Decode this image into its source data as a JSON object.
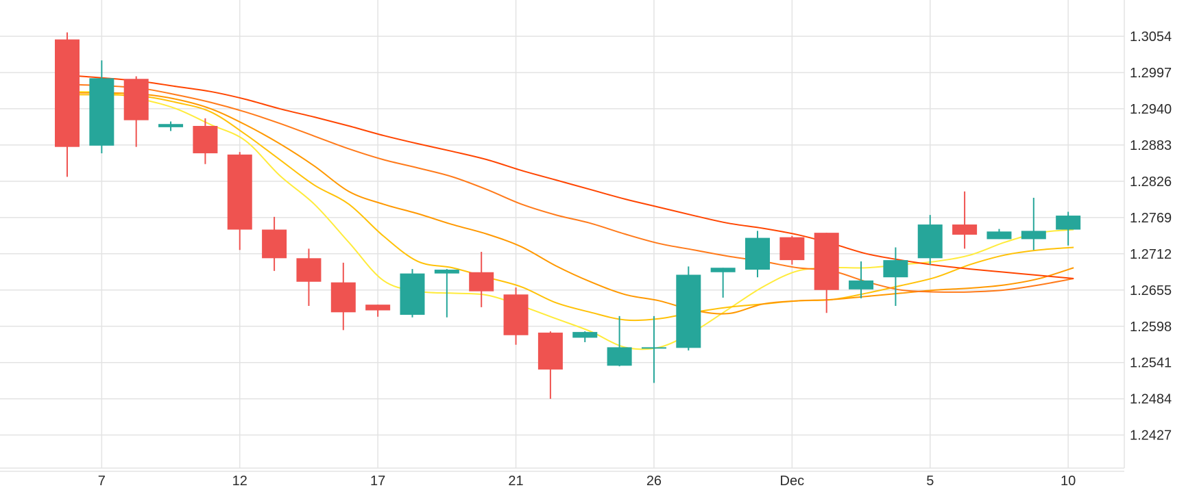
{
  "chart_data": {
    "type": "candlestick",
    "title": "",
    "xlabel": "",
    "ylabel": "",
    "x_ticks": [
      {
        "label": "7",
        "index": 1
      },
      {
        "label": "12",
        "index": 5
      },
      {
        "label": "17",
        "index": 9
      },
      {
        "label": "21",
        "index": 13
      },
      {
        "label": "26",
        "index": 17
      },
      {
        "label": "Dec",
        "index": 21
      },
      {
        "label": "5",
        "index": 25
      },
      {
        "label": "10",
        "index": 29
      }
    ],
    "y_ticks": [
      "1.3054",
      "1.2997",
      "1.2940",
      "1.2883",
      "1.2826",
      "1.2769",
      "1.2712",
      "1.2655",
      "1.2598",
      "1.2541",
      "1.2484",
      "1.2427"
    ],
    "ylim": [
      1.2375,
      1.3111
    ],
    "grid": true,
    "colors": {
      "up": "#26a69a",
      "down": "#ef5350",
      "grid": "#e3e3e3",
      "ma": [
        "#ffeb3b",
        "#ffc107",
        "#ff9800",
        "#ff7a1a",
        "#ff4500"
      ]
    },
    "candles": [
      {
        "o": 1.3049,
        "h": 1.306,
        "l": 1.2833,
        "c": 1.288
      },
      {
        "o": 1.2882,
        "h": 1.3016,
        "l": 1.287,
        "c": 1.2988
      },
      {
        "o": 1.2987,
        "h": 1.2991,
        "l": 1.288,
        "c": 1.2922
      },
      {
        "o": 1.2911,
        "h": 1.292,
        "l": 1.2905,
        "c": 1.2916
      },
      {
        "o": 1.2913,
        "h": 1.2925,
        "l": 1.2853,
        "c": 1.287
      },
      {
        "o": 1.2868,
        "h": 1.2872,
        "l": 1.2718,
        "c": 1.275
      },
      {
        "o": 1.275,
        "h": 1.277,
        "l": 1.2685,
        "c": 1.2705
      },
      {
        "o": 1.2705,
        "h": 1.272,
        "l": 1.263,
        "c": 1.2668
      },
      {
        "o": 1.2667,
        "h": 1.2698,
        "l": 1.2592,
        "c": 1.262
      },
      {
        "o": 1.2632,
        "h": 1.2632,
        "l": 1.2613,
        "c": 1.2623
      },
      {
        "o": 1.2616,
        "h": 1.2688,
        "l": 1.2612,
        "c": 1.2681
      },
      {
        "o": 1.2681,
        "h": 1.2688,
        "l": 1.2612,
        "c": 1.2687
      },
      {
        "o": 1.2683,
        "h": 1.2715,
        "l": 1.2628,
        "c": 1.2653
      },
      {
        "o": 1.2648,
        "h": 1.2659,
        "l": 1.2569,
        "c": 1.2584
      },
      {
        "o": 1.2588,
        "h": 1.259,
        "l": 1.2484,
        "c": 1.253
      },
      {
        "o": 1.258,
        "h": 1.259,
        "l": 1.2573,
        "c": 1.2589
      },
      {
        "o": 1.2536,
        "h": 1.2614,
        "l": 1.2535,
        "c": 1.2565
      },
      {
        "o": 1.2565,
        "h": 1.2614,
        "l": 1.2509,
        "c": 1.2565
      },
      {
        "o": 1.2564,
        "h": 1.2692,
        "l": 1.256,
        "c": 1.2679
      },
      {
        "o": 1.2683,
        "h": 1.269,
        "l": 1.2643,
        "c": 1.269
      },
      {
        "o": 1.2687,
        "h": 1.2748,
        "l": 1.2675,
        "c": 1.2737
      },
      {
        "o": 1.2738,
        "h": 1.274,
        "l": 1.2695,
        "c": 1.2702
      },
      {
        "o": 1.2745,
        "h": 1.2745,
        "l": 1.2619,
        "c": 1.2655
      },
      {
        "o": 1.2656,
        "h": 1.27,
        "l": 1.2642,
        "c": 1.267
      },
      {
        "o": 1.2675,
        "h": 1.2722,
        "l": 1.263,
        "c": 1.2702
      },
      {
        "o": 1.2705,
        "h": 1.2773,
        "l": 1.2695,
        "c": 1.2758
      },
      {
        "o": 1.2758,
        "h": 1.281,
        "l": 1.272,
        "c": 1.2742
      },
      {
        "o": 1.2735,
        "h": 1.2751,
        "l": 1.2735,
        "c": 1.2747
      },
      {
        "o": 1.2735,
        "h": 1.28,
        "l": 1.2718,
        "c": 1.2748
      },
      {
        "o": 1.275,
        "h": 1.2778,
        "l": 1.2725,
        "c": 1.2772
      }
    ],
    "moving_averages": [
      {
        "values": [
          1.2967,
          1.2965,
          1.2955,
          1.294,
          1.2915,
          1.289,
          1.2835,
          1.279,
          1.273,
          1.267,
          1.2653,
          1.265,
          1.2647,
          1.263,
          1.261,
          1.259,
          1.2565,
          1.2565,
          1.259,
          1.2625,
          1.266,
          1.2685,
          1.269,
          1.269,
          1.2695,
          1.27,
          1.271,
          1.273,
          1.2745,
          1.275
        ]
      },
      {
        "values": [
          1.2962,
          1.2962,
          1.296,
          1.295,
          1.2935,
          1.29,
          1.286,
          1.282,
          1.279,
          1.274,
          1.27,
          1.269,
          1.2675,
          1.266,
          1.2635,
          1.262,
          1.2608,
          1.261,
          1.262,
          1.2628,
          1.2633,
          1.2638,
          1.264,
          1.265,
          1.2662,
          1.2675,
          1.2695,
          1.271,
          1.2718,
          1.2722
        ]
      },
      {
        "values": [
          1.2965,
          1.2965,
          1.2963,
          1.2955,
          1.294,
          1.2915,
          1.2885,
          1.285,
          1.281,
          1.279,
          1.2775,
          1.2758,
          1.2743,
          1.2723,
          1.2693,
          1.2668,
          1.2648,
          1.2638,
          1.2623,
          1.2618,
          1.2633,
          1.2638,
          1.264,
          1.2645,
          1.265,
          1.2655,
          1.2658,
          1.2663,
          1.2673,
          1.269
        ]
      },
      {
        "values": [
          1.2978,
          1.2976,
          1.2972,
          1.2962,
          1.295,
          1.2935,
          1.2917,
          1.2897,
          1.2877,
          1.286,
          1.2847,
          1.2833,
          1.2813,
          1.279,
          1.2773,
          1.276,
          1.2743,
          1.2728,
          1.2718,
          1.2708,
          1.27,
          1.269,
          1.2685,
          1.2668,
          1.2655,
          1.2652,
          1.2652,
          1.2655,
          1.2663,
          1.2673
        ]
      },
      {
        "values": [
          1.2992,
          1.2988,
          1.2983,
          1.2975,
          1.2967,
          1.2955,
          1.294,
          1.2927,
          1.2913,
          1.2898,
          1.2885,
          1.2873,
          1.286,
          1.2843,
          1.2828,
          1.2813,
          1.2798,
          1.2785,
          1.2772,
          1.276,
          1.2752,
          1.2742,
          1.2728,
          1.2712,
          1.2702,
          1.2694,
          1.2688,
          1.2683,
          1.2678,
          1.2673
        ]
      }
    ]
  }
}
